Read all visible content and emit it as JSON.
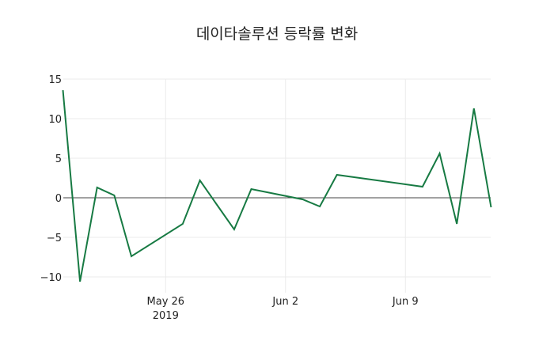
{
  "chart_data": {
    "type": "line",
    "title": "데이타솔루션 등락률 변화",
    "xlabel": "",
    "ylabel": "",
    "ylim": [
      -11.5,
      15.5
    ],
    "yticks": [
      15,
      10,
      5,
      0,
      -5,
      -10
    ],
    "ytick_labels": [
      "15",
      "10",
      "5",
      "0",
      "−5",
      "−10"
    ],
    "xticks": [
      "2019-05-26",
      "2019-06-02",
      "2019-06-09"
    ],
    "xtick_labels": [
      [
        "May 26",
        "2019"
      ],
      [
        "Jun 2"
      ],
      [
        "Jun 9"
      ]
    ],
    "grid": true,
    "zero_line": true,
    "legend": null,
    "line_color": "#177a43",
    "x": [
      "2019-05-20",
      "2019-05-21",
      "2019-05-22",
      "2019-05-23",
      "2019-05-24",
      "2019-05-27",
      "2019-05-28",
      "2019-05-29",
      "2019-05-30",
      "2019-05-31",
      "2019-06-03",
      "2019-06-04",
      "2019-06-05",
      "2019-06-10",
      "2019-06-11",
      "2019-06-12",
      "2019-06-13",
      "2019-06-14"
    ],
    "values": [
      13.6,
      -10.6,
      1.3,
      0.3,
      -7.4,
      -3.3,
      2.2,
      -0.9,
      -4.0,
      1.1,
      -0.2,
      -1.1,
      2.9,
      1.4,
      5.6,
      -3.3,
      11.3,
      -1.2
    ]
  }
}
